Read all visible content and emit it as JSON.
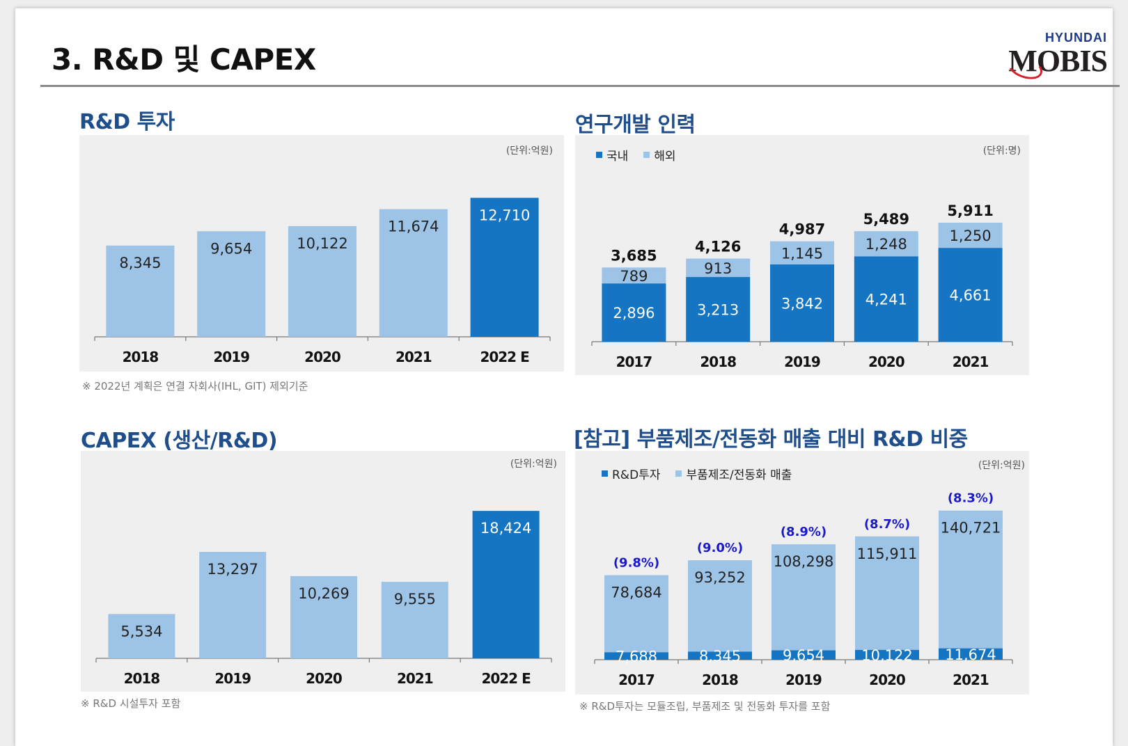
{
  "header": {
    "title": "3. R&D 및 CAPEX",
    "logo_top": "HYUNDAI",
    "logo_main": "MOBIS"
  },
  "colors": {
    "light": "#9dc3e6",
    "dark": "#1675c2",
    "title": "#1f4e8c",
    "pct": "#1a1acc"
  },
  "sections": {
    "rnd": {
      "title": "R&D 투자",
      "unit": "(단위:억원)",
      "note": "※ 2022년 계획은 연결 자회사(IHL, GIT) 제외기준"
    },
    "staff": {
      "title": "연구개발 인력",
      "unit": "(단위:명)",
      "legend": [
        "국내",
        "해외"
      ]
    },
    "capex": {
      "title": "CAPEX (생산/R&D)",
      "unit": "(단위:억원)",
      "note": "※ R&D 시설투자 포함"
    },
    "ratio": {
      "title": "[참고] 부품제조/전동화 매출 대비 R&D 비중",
      "unit": "(단위:억원)",
      "legend": [
        "R&D투자",
        "부품제조/전동화 매출"
      ],
      "note": "※ R&D투자는 모듈조립, 부품제조 및 전동화 투자를 포함"
    }
  },
  "chart_data": [
    {
      "id": "rnd",
      "type": "bar",
      "title": "R&D 투자",
      "categories": [
        "2018",
        "2019",
        "2020",
        "2021",
        "2022 E"
      ],
      "values": [
        8345,
        9654,
        10122,
        11674,
        12710
      ],
      "labels": [
        "8,345",
        "9,654",
        "10,122",
        "11,674",
        "12,710"
      ],
      "highlight": [
        false,
        false,
        false,
        false,
        true
      ],
      "ylim": [
        0,
        14000
      ]
    },
    {
      "id": "staff",
      "type": "bar",
      "stacked": true,
      "title": "연구개발 인력",
      "categories": [
        "2017",
        "2018",
        "2019",
        "2020",
        "2021"
      ],
      "series": [
        {
          "name": "국내",
          "values": [
            2896,
            3213,
            3842,
            4241,
            4661
          ],
          "labels": [
            "2,896",
            "3,213",
            "3,842",
            "4,241",
            "4,661"
          ]
        },
        {
          "name": "해외",
          "values": [
            789,
            913,
            1145,
            1248,
            1250
          ],
          "labels": [
            "789",
            "913",
            "1,145",
            "1,248",
            "1,250"
          ]
        }
      ],
      "totals": [
        "3,685",
        "4,126",
        "4,987",
        "5,489",
        "5,911"
      ],
      "ylim": [
        0,
        7500
      ]
    },
    {
      "id": "capex",
      "type": "bar",
      "title": "CAPEX (생산/R&D)",
      "categories": [
        "2018",
        "2019",
        "2020",
        "2021",
        "2022 E"
      ],
      "values": [
        5534,
        13297,
        10269,
        9555,
        18424
      ],
      "labels": [
        "5,534",
        "13,297",
        "10,269",
        "9,555",
        "18,424"
      ],
      "highlight": [
        false,
        false,
        false,
        false,
        true
      ],
      "ylim": [
        0,
        20000
      ]
    },
    {
      "id": "ratio",
      "type": "bar",
      "stacked": true,
      "title": "[참고] 부품제조/전동화 매출 대비 R&D 비중",
      "categories": [
        "2017",
        "2018",
        "2019",
        "2020",
        "2021"
      ],
      "series": [
        {
          "name": "R&D투자",
          "values": [
            7688,
            8345,
            9654,
            10122,
            11674
          ],
          "labels": [
            "7,688",
            "8,345",
            "9,654",
            "10,122",
            "11,674"
          ]
        },
        {
          "name": "부품제조/전동화 매출",
          "values": [
            78684,
            93252,
            108298,
            115911,
            140721
          ],
          "labels": [
            "78,684",
            "93,252",
            "108,298",
            "115,911",
            "140,721"
          ]
        }
      ],
      "percent_labels": [
        "(9.8%)",
        "(9.0%)",
        "(8.9%)",
        "(8.7%)",
        "(8.3%)"
      ],
      "ylim": [
        0,
        160000
      ]
    }
  ]
}
